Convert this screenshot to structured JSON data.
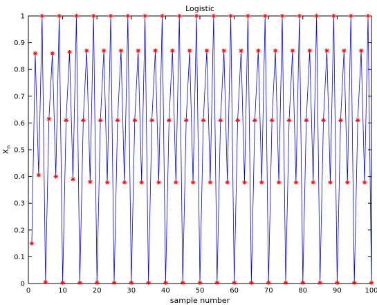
{
  "chart_data": {
    "type": "line",
    "title": "Logistic",
    "xlabel": "sample number",
    "ylabel": "X",
    "ylabel_sub": "n",
    "xlim": [
      0,
      100
    ],
    "ylim": [
      0,
      1
    ],
    "xticks": [
      0,
      10,
      20,
      30,
      40,
      50,
      60,
      70,
      80,
      90,
      100
    ],
    "yticks": [
      0,
      0.1,
      0.2,
      0.3,
      0.4,
      0.5,
      0.6,
      0.7,
      0.8,
      0.9,
      1
    ],
    "grid": false,
    "line_color": "#0000ff",
    "marker_color": "#ff0000",
    "marker": "*",
    "x": [
      1,
      2,
      3,
      4,
      5,
      6,
      7,
      8,
      9,
      10,
      11,
      12,
      13,
      14,
      15,
      16,
      17,
      18,
      19,
      20,
      21,
      22,
      23,
      24,
      25,
      26,
      27,
      28,
      29,
      30,
      31,
      32,
      33,
      34,
      35,
      36,
      37,
      38,
      39,
      40,
      41,
      42,
      43,
      44,
      45,
      46,
      47,
      48,
      49,
      50,
      51,
      52,
      53,
      54,
      55,
      56,
      57,
      58,
      59,
      60,
      61,
      62,
      63,
      64,
      65,
      66,
      67,
      68,
      69,
      70,
      71,
      72,
      73,
      74,
      75,
      76,
      77,
      78,
      79,
      80,
      81,
      82,
      83,
      84,
      85,
      86,
      87,
      88,
      89,
      90,
      91,
      92,
      93,
      94,
      95,
      96,
      97,
      98,
      99,
      100
    ],
    "values": [
      0.15,
      0.86,
      0.405,
      1.0,
      0.005,
      0.615,
      0.86,
      0.4,
      1.0,
      0.003,
      0.61,
      0.865,
      0.39,
      1.0,
      0.003,
      0.61,
      0.87,
      0.38,
      1.0,
      0.003,
      0.61,
      0.87,
      0.378,
      1.0,
      0.003,
      0.61,
      0.87,
      0.378,
      1.0,
      0.003,
      0.61,
      0.87,
      0.378,
      1.0,
      0.003,
      0.61,
      0.87,
      0.378,
      1.0,
      0.003,
      0.61,
      0.87,
      0.378,
      1.0,
      0.003,
      0.61,
      0.87,
      0.378,
      1.0,
      0.003,
      0.61,
      0.87,
      0.378,
      1.0,
      0.003,
      0.61,
      0.87,
      0.378,
      1.0,
      0.003,
      0.61,
      0.87,
      0.378,
      1.0,
      0.003,
      0.61,
      0.87,
      0.378,
      1.0,
      0.003,
      0.61,
      0.87,
      0.378,
      1.0,
      0.003,
      0.61,
      0.87,
      0.378,
      1.0,
      0.003,
      0.61,
      0.87,
      0.378,
      1.0,
      0.003,
      0.61,
      0.87,
      0.378,
      1.0,
      0.003,
      0.61,
      0.87,
      0.378,
      1.0,
      0.003,
      0.61,
      0.87,
      0.378,
      1.0,
      0.003
    ]
  }
}
